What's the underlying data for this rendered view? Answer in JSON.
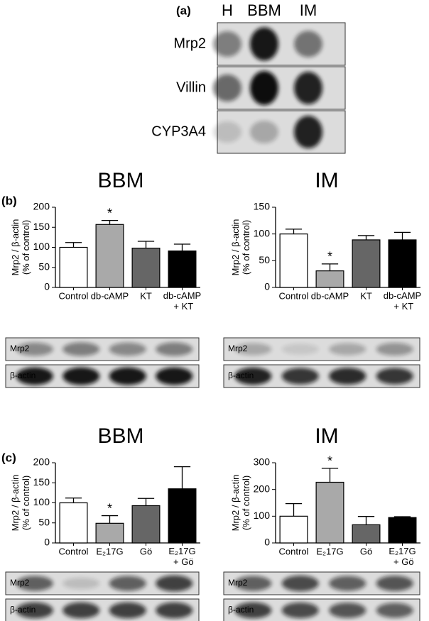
{
  "panel_a": {
    "label": "(a)",
    "lanes": [
      "H",
      "BBM",
      "IM"
    ],
    "rows": [
      "Mrp2",
      "Villin",
      "CYP3A4"
    ]
  },
  "panel_labels": [
    "(b)",
    "(c)"
  ],
  "chart_data": [
    {
      "type": "bar",
      "title": "BBM",
      "ylabel": [
        "Mrp2 / β-actin",
        "(% of control)"
      ],
      "categories": [
        "Control",
        "db-cAMP",
        "KT",
        "db-cAMP + KT"
      ],
      "values": [
        100,
        157,
        98,
        91
      ],
      "errors": [
        12,
        10,
        17,
        17
      ],
      "colors": [
        "#ffffff",
        "#a9a9a9",
        "#666666",
        "#000000"
      ],
      "ylim": [
        0,
        200
      ],
      "yticks": [
        0,
        50,
        100,
        150,
        200
      ],
      "annotations": [
        {
          "text": "*",
          "x": "db-cAMP"
        }
      ],
      "blots": [
        "Mrp2",
        "β-actin"
      ]
    },
    {
      "type": "bar",
      "title": "IM",
      "ylabel": [
        "Mrp2 / β-actin",
        "(% of control)"
      ],
      "categories": [
        "Control",
        "db-cAMP",
        "KT",
        "db-cAMP + KT"
      ],
      "values": [
        100,
        31,
        89,
        89
      ],
      "errors": [
        9,
        13,
        8,
        14
      ],
      "colors": [
        "#ffffff",
        "#a9a9a9",
        "#666666",
        "#000000"
      ],
      "ylim": [
        0,
        150
      ],
      "yticks": [
        0,
        50,
        100,
        150
      ],
      "annotations": [
        {
          "text": "*",
          "x": "db-cAMP"
        }
      ],
      "blots": [
        "Mrp2",
        "β-actin"
      ]
    },
    {
      "type": "bar",
      "title": "BBM",
      "ylabel": [
        "Mrp2 / β-actin",
        "(% of control)"
      ],
      "categories": [
        "Control",
        "E₂17G",
        "Gö",
        "E₂17G + Gö"
      ],
      "values": [
        100,
        49,
        93,
        135
      ],
      "errors": [
        12,
        19,
        18,
        55
      ],
      "colors": [
        "#ffffff",
        "#a9a9a9",
        "#666666",
        "#000000"
      ],
      "ylim": [
        0,
        200
      ],
      "yticks": [
        0,
        50,
        100,
        150,
        200
      ],
      "annotations": [
        {
          "text": "*",
          "x": "E₂17G"
        }
      ],
      "blots": [
        "Mrp2",
        "β-actin"
      ]
    },
    {
      "type": "bar",
      "title": "IM",
      "ylabel": [
        "Mrp2 / β-actin",
        "(% of control)"
      ],
      "categories": [
        "Control",
        "E₂17G",
        "Gö",
        "E₂17G + Gö"
      ],
      "values": [
        100,
        227,
        68,
        95
      ],
      "errors": [
        47,
        52,
        31,
        3
      ],
      "colors": [
        "#ffffff",
        "#a9a9a9",
        "#666666",
        "#000000"
      ],
      "ylim": [
        0,
        300
      ],
      "yticks": [
        0,
        100,
        200,
        300
      ],
      "annotations": [
        {
          "text": "*",
          "x": "E₂17G"
        }
      ],
      "blots": [
        "Mrp2",
        "β-actin"
      ]
    }
  ]
}
